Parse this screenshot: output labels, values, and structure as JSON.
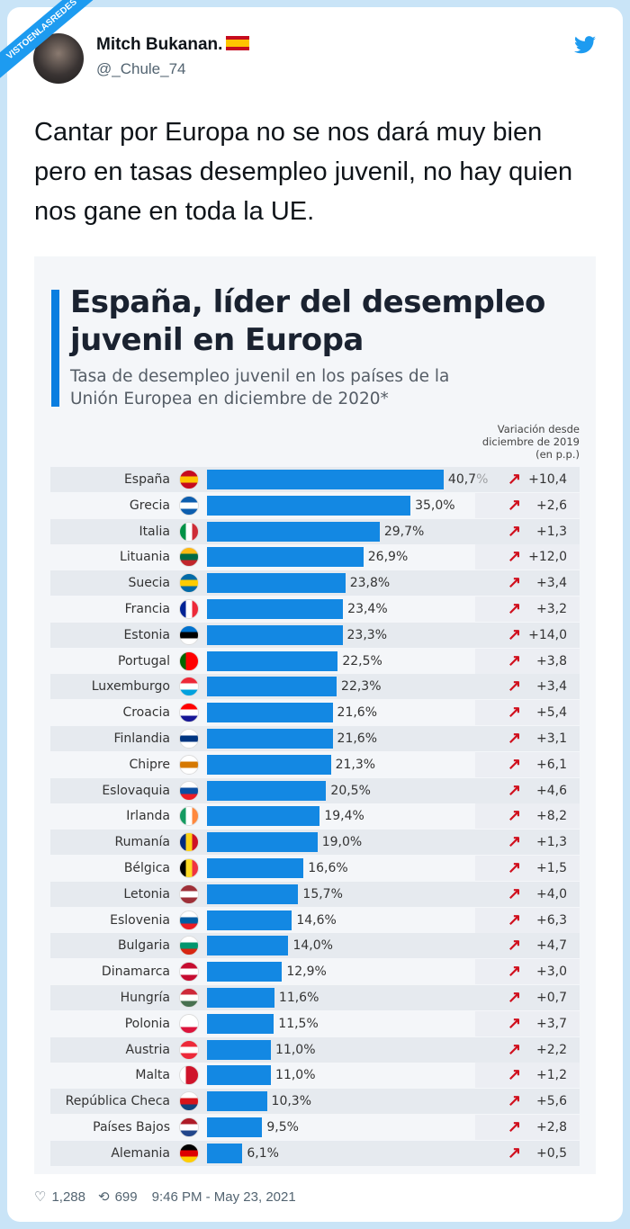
{
  "watermark": "VISTOENLASREDES",
  "tweet": {
    "author_name": "Mitch Bukanan.",
    "handle": "@_Chule_74",
    "text": "Cantar por Europa no se nos dará muy bien pero en tasas desempleo juvenil, no hay quien nos gane en toda la UE.",
    "likes": "1,288",
    "retweets": "699",
    "timestamp": "9:46 PM - May 23, 2021",
    "brand_color": "#1d9bf0"
  },
  "chart_data": {
    "type": "bar",
    "orientation": "horizontal",
    "title": "España, líder del desempleo juvenil en Europa",
    "subtitle": "Tasa de desempleo juvenil en los países de la Unión Europea en diciembre de 2020*",
    "change_header": "Variación desde diciembre de 2019 (en p.p.)",
    "bar_color": "#1388e3",
    "arrow_color": "#d0101e",
    "xlim": [
      0,
      45
    ],
    "categories": [
      "España",
      "Grecia",
      "Italia",
      "Lituania",
      "Suecia",
      "Francia",
      "Estonia",
      "Portugal",
      "Luxemburgo",
      "Croacia",
      "Finlandia",
      "Chipre",
      "Eslovaquia",
      "Irlanda",
      "Rumanía",
      "Bélgica",
      "Letonia",
      "Eslovenia",
      "Bulgaria",
      "Dinamarca",
      "Hungría",
      "Polonia",
      "Austria",
      "Malta",
      "República Checa",
      "Países Bajos",
      "Alemania"
    ],
    "values": [
      40.7,
      35.0,
      29.7,
      26.9,
      23.8,
      23.4,
      23.3,
      22.5,
      22.3,
      21.6,
      21.6,
      21.3,
      20.5,
      19.4,
      19.0,
      16.6,
      15.7,
      14.6,
      14.0,
      12.9,
      11.6,
      11.5,
      11.0,
      11.0,
      10.3,
      9.5,
      6.1
    ],
    "value_labels": [
      "40,7%",
      "35,0%",
      "29,7%",
      "26,9%",
      "23,8%",
      "23,4%",
      "23,3%",
      "22,5%",
      "22,3%",
      "21,6%",
      "21,6%",
      "21,3%",
      "20,5%",
      "19,4%",
      "19,0%",
      "16,6%",
      "15,7%",
      "14,6%",
      "14,0%",
      "12,9%",
      "11,6%",
      "11,5%",
      "11,0%",
      "11,0%",
      "10,3%",
      "9,5%",
      "6,1%"
    ],
    "changes": [
      "+10,4",
      "+2,6",
      "+1,3",
      "+12,0",
      "+3,4",
      "+3,2",
      "+14,0",
      "+3,8",
      "+3,4",
      "+5,4",
      "+3,1",
      "+6,1",
      "+4,6",
      "+8,2",
      "+1,3",
      "+1,5",
      "+4,0",
      "+6,3",
      "+4,7",
      "+3,0",
      "+0,7",
      "+3,7",
      "+2,2",
      "+1,2",
      "+5,6",
      "+2,8",
      "+0,5"
    ]
  }
}
